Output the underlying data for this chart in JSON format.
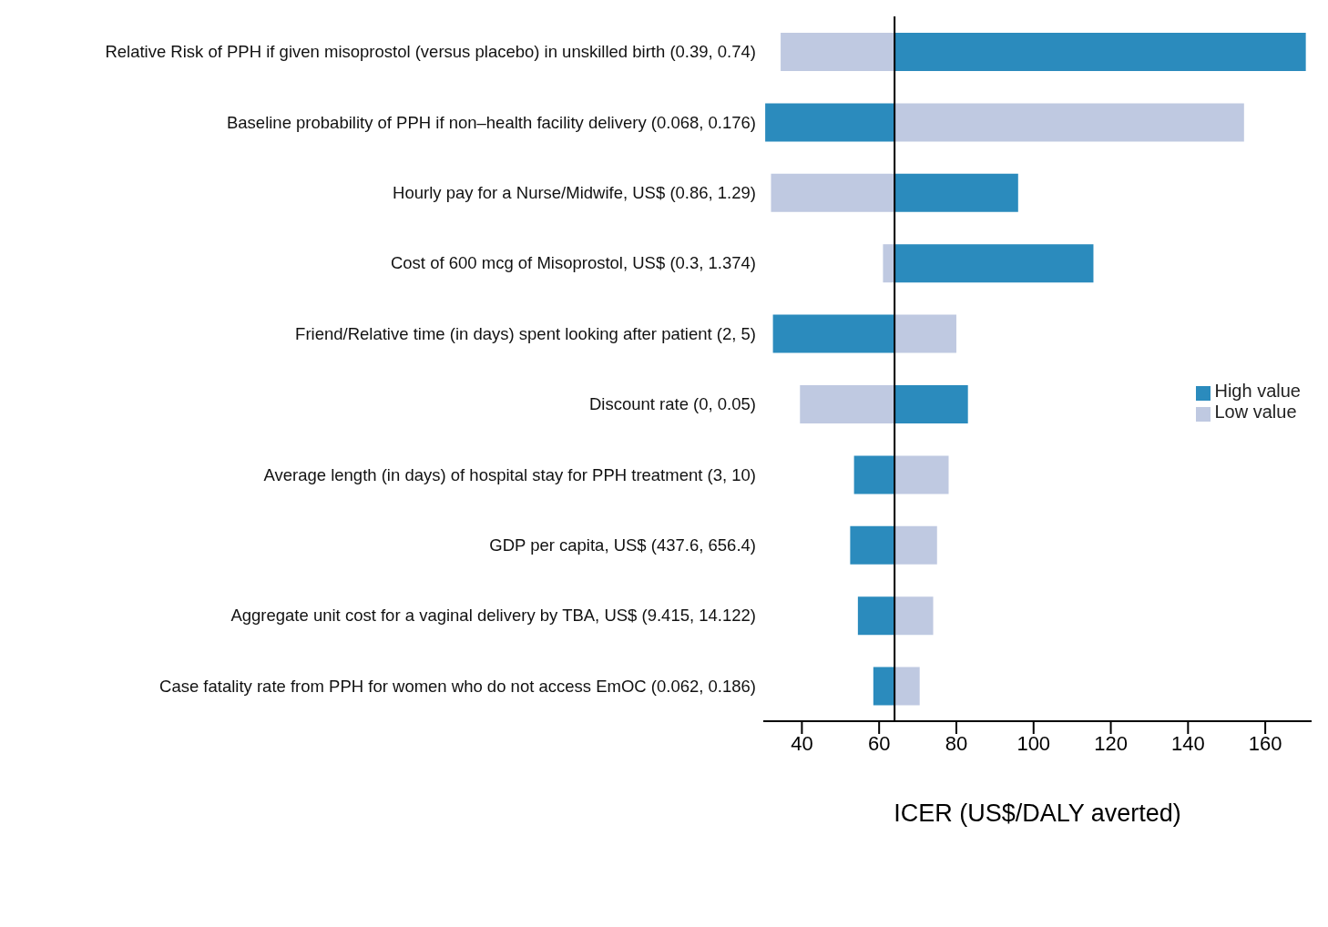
{
  "chart_data": {
    "type": "bar",
    "orientation": "horizontal",
    "xlabel": "ICER (US$/DALY averted)",
    "categories": [
      "Relative Risk of PPH if given misoprostol (versus placebo) in unskilled birth (0.39, 0.74)",
      "Baseline probability of PPH if non–health facility delivery (0.068, 0.176)",
      "Hourly pay for a Nurse/Midwife, US$ (0.86, 1.29)",
      "Cost of 600 mcg of Misoprostol, US$ (0.3, 1.374)",
      "Friend/Relative time (in days) spent looking after patient (2, 5)",
      "Discount rate (0, 0.05)",
      "Average length (in days) of hospital stay for PPH treatment (3, 10)",
      "GDP per capita, US$ (437.6, 656.4)",
      "Aggregate unit cost for a vaginal delivery by TBA, US$ (9.415, 14.122)",
      "Case fatality rate from PPH for women who do not access EmOC (0.062, 0.186)"
    ],
    "series": [
      {
        "name": "Low value",
        "color": "#bfc9e1",
        "base": [
          64,
          64,
          64,
          64,
          64,
          64,
          64,
          64,
          64,
          64
        ],
        "values": [
          -29.5,
          90.5,
          -32,
          -3,
          16,
          -24.5,
          14,
          11,
          10,
          6.5
        ]
      },
      {
        "name": "High value",
        "color": "#2b8bbd",
        "base": [
          64,
          64,
          64,
          64,
          64,
          64,
          64,
          64,
          64,
          64
        ],
        "values": [
          106.5,
          -33.5,
          32,
          51.5,
          -31.5,
          19,
          -10.5,
          -11.5,
          -9.5,
          -5.5
        ]
      }
    ],
    "xlim": [
      30,
      172
    ],
    "xticks": [
      40,
      60,
      80,
      100,
      120,
      140,
      160
    ],
    "ref_lines": [
      {
        "axis": "x",
        "value": 64,
        "color": "#000000"
      }
    ],
    "grid": false,
    "legend": "right"
  }
}
